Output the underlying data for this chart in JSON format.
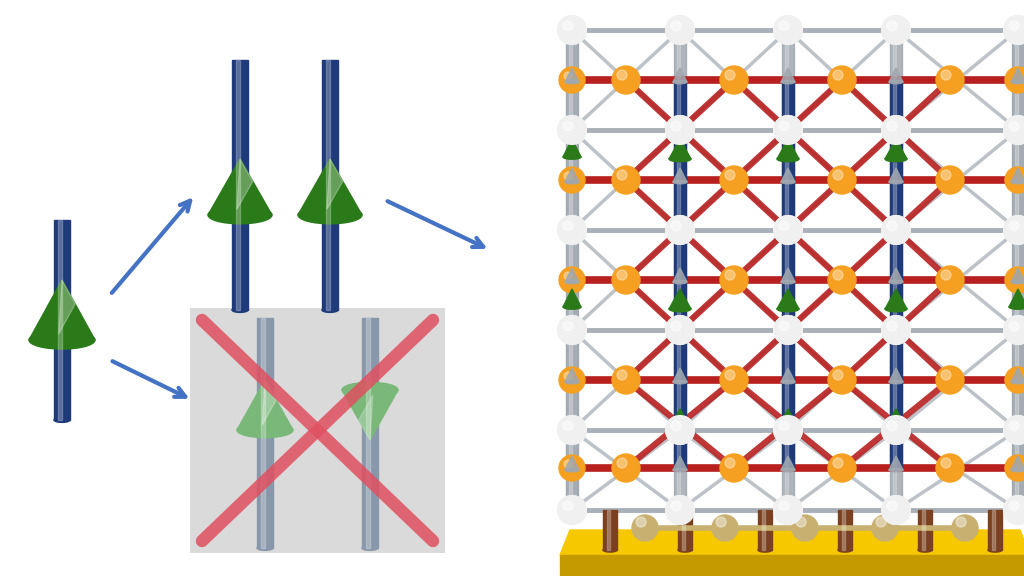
{
  "bg_color": "#ffffff",
  "arrow_color": "#4472C4",
  "cone_color_dark": "#2a7a1a",
  "cone_color_light": "#7ab87a",
  "rod_color_dark": "#1e3a7a",
  "rod_color_light": "#8898aa",
  "x_cross_color": "#e05060",
  "gray_box_color": "#d5d5d5",
  "crystal_red": "#b82020",
  "crystal_orange": "#f5a020",
  "crystal_green": "#2a7a1a",
  "crystal_blue": "#1e3a7a",
  "crystal_gray": "#a0a8b0",
  "crystal_gray_dark": "#7a8090",
  "crystal_white": "#e0e4e8",
  "crystal_white2": "#f0f0f0",
  "crystal_yellow": "#f5c800",
  "crystal_yellow_dark": "#c49a00",
  "crystal_brown": "#7a4020",
  "crystal_beige": "#c8b070"
}
